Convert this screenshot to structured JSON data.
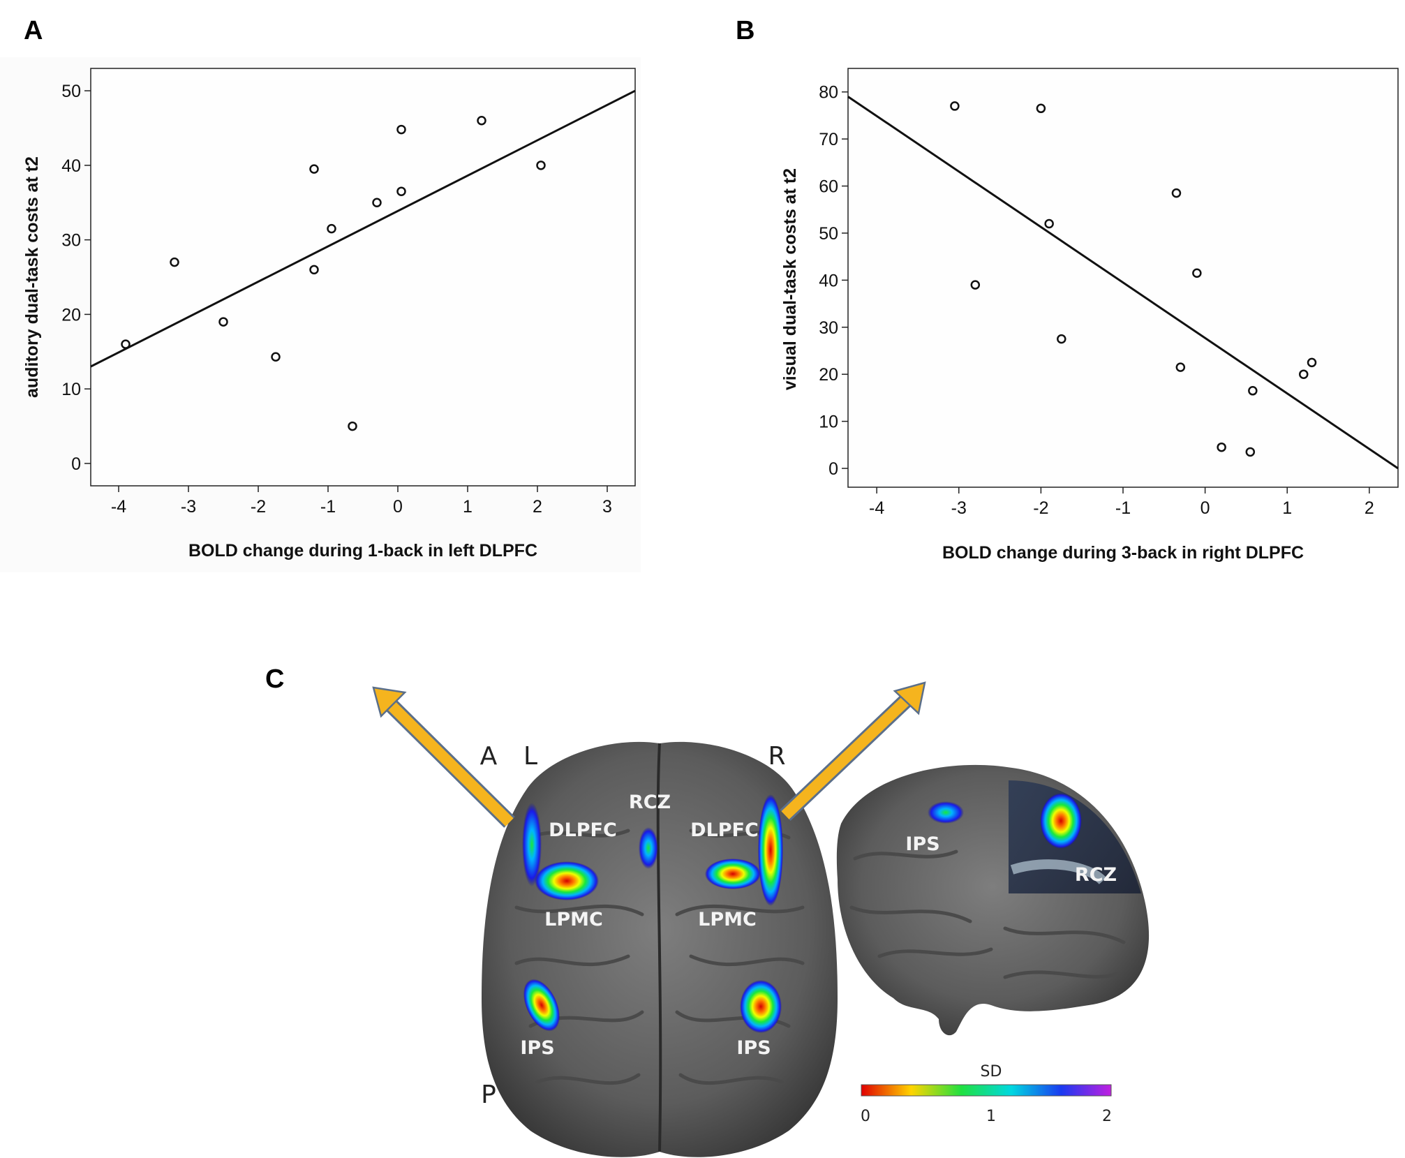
{
  "panels": {
    "a": "A",
    "b": "B",
    "c": "C"
  },
  "chart_data": [
    {
      "type": "scatter",
      "panel": "A",
      "xlabel": "BOLD change during 1-back in left DLPFC",
      "ylabel": "auditory dual-task costs at t2",
      "xlim": [
        -4.4,
        3.4
      ],
      "ylim": [
        -3,
        53
      ],
      "xticks": [
        -4,
        -3,
        -2,
        -1,
        0,
        1,
        2,
        3
      ],
      "yticks": [
        0,
        10,
        20,
        30,
        40,
        50
      ],
      "grid": false,
      "x": [
        -3.9,
        -3.2,
        -2.5,
        -1.75,
        -1.2,
        -1.2,
        -0.95,
        -0.65,
        -0.3,
        0.05,
        0.05,
        1.2,
        2.05
      ],
      "y": [
        16,
        27,
        19,
        14.3,
        39.5,
        26,
        31.5,
        5,
        35,
        36.5,
        44.8,
        46,
        40
      ],
      "fit_line": {
        "x": [
          -4.4,
          3.4
        ],
        "y": [
          13,
          50
        ]
      }
    },
    {
      "type": "scatter",
      "panel": "B",
      "xlabel": "BOLD change during 3-back in right DLPFC",
      "ylabel": "visual dual-task costs at t2",
      "xlim": [
        -4.35,
        2.35
      ],
      "ylim": [
        -4,
        85
      ],
      "xticks": [
        -4,
        -3,
        -2,
        -1,
        0,
        1,
        2
      ],
      "yticks": [
        0,
        10,
        20,
        30,
        40,
        50,
        60,
        70,
        80
      ],
      "grid": false,
      "x": [
        -3.05,
        -2.8,
        -2.0,
        -1.9,
        -1.75,
        -0.35,
        -0.3,
        -0.1,
        0.2,
        0.55,
        0.58,
        1.2,
        1.3
      ],
      "y": [
        77,
        39,
        76.5,
        52,
        27.5,
        58.5,
        21.5,
        41.5,
        4.5,
        3.5,
        16.5,
        20,
        22.5
      ],
      "fit_line": {
        "x": [
          -4.35,
          2.35
        ],
        "y": [
          79,
          0
        ]
      }
    }
  ],
  "brain": {
    "orientation": {
      "anterior": "A",
      "left": "L",
      "right": "R",
      "posterior": "P"
    },
    "regions_axial": [
      "RCZ",
      "DLPFC",
      "DLPFC",
      "LPMC",
      "LPMC",
      "IPS",
      "IPS"
    ],
    "regions_sagittal": [
      "IPS",
      "RCZ"
    ],
    "arrow_color": "#F5B41E",
    "colorbar": {
      "title": "SD",
      "ticks": [
        "0",
        "1",
        "2"
      ]
    }
  }
}
